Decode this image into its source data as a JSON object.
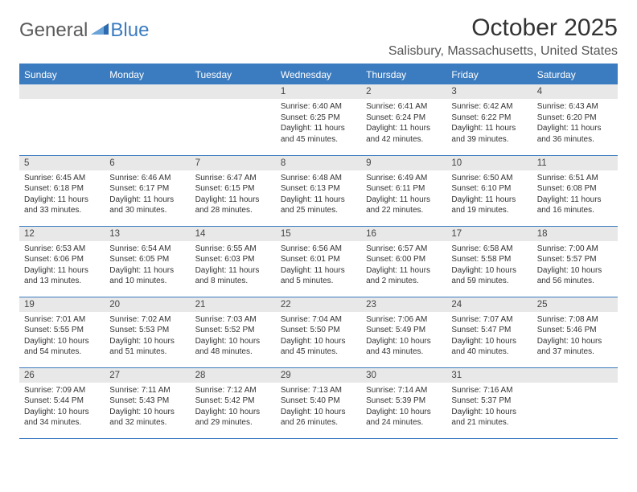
{
  "logo": {
    "general": "General",
    "blue": "Blue"
  },
  "title": "October 2025",
  "location": "Salisbury, Massachusetts, United States",
  "colors": {
    "header_bg": "#3b7bbf",
    "header_text": "#ffffff",
    "daynum_bg": "#e8e8e8",
    "border": "#3b7bbf",
    "text": "#333333"
  },
  "weekdays": [
    "Sunday",
    "Monday",
    "Tuesday",
    "Wednesday",
    "Thursday",
    "Friday",
    "Saturday"
  ],
  "weeks": [
    [
      {
        "day": "",
        "sunrise": "",
        "sunset": "",
        "daylight": ""
      },
      {
        "day": "",
        "sunrise": "",
        "sunset": "",
        "daylight": ""
      },
      {
        "day": "",
        "sunrise": "",
        "sunset": "",
        "daylight": ""
      },
      {
        "day": "1",
        "sunrise": "Sunrise: 6:40 AM",
        "sunset": "Sunset: 6:25 PM",
        "daylight": "Daylight: 11 hours and 45 minutes."
      },
      {
        "day": "2",
        "sunrise": "Sunrise: 6:41 AM",
        "sunset": "Sunset: 6:24 PM",
        "daylight": "Daylight: 11 hours and 42 minutes."
      },
      {
        "day": "3",
        "sunrise": "Sunrise: 6:42 AM",
        "sunset": "Sunset: 6:22 PM",
        "daylight": "Daylight: 11 hours and 39 minutes."
      },
      {
        "day": "4",
        "sunrise": "Sunrise: 6:43 AM",
        "sunset": "Sunset: 6:20 PM",
        "daylight": "Daylight: 11 hours and 36 minutes."
      }
    ],
    [
      {
        "day": "5",
        "sunrise": "Sunrise: 6:45 AM",
        "sunset": "Sunset: 6:18 PM",
        "daylight": "Daylight: 11 hours and 33 minutes."
      },
      {
        "day": "6",
        "sunrise": "Sunrise: 6:46 AM",
        "sunset": "Sunset: 6:17 PM",
        "daylight": "Daylight: 11 hours and 30 minutes."
      },
      {
        "day": "7",
        "sunrise": "Sunrise: 6:47 AM",
        "sunset": "Sunset: 6:15 PM",
        "daylight": "Daylight: 11 hours and 28 minutes."
      },
      {
        "day": "8",
        "sunrise": "Sunrise: 6:48 AM",
        "sunset": "Sunset: 6:13 PM",
        "daylight": "Daylight: 11 hours and 25 minutes."
      },
      {
        "day": "9",
        "sunrise": "Sunrise: 6:49 AM",
        "sunset": "Sunset: 6:11 PM",
        "daylight": "Daylight: 11 hours and 22 minutes."
      },
      {
        "day": "10",
        "sunrise": "Sunrise: 6:50 AM",
        "sunset": "Sunset: 6:10 PM",
        "daylight": "Daylight: 11 hours and 19 minutes."
      },
      {
        "day": "11",
        "sunrise": "Sunrise: 6:51 AM",
        "sunset": "Sunset: 6:08 PM",
        "daylight": "Daylight: 11 hours and 16 minutes."
      }
    ],
    [
      {
        "day": "12",
        "sunrise": "Sunrise: 6:53 AM",
        "sunset": "Sunset: 6:06 PM",
        "daylight": "Daylight: 11 hours and 13 minutes."
      },
      {
        "day": "13",
        "sunrise": "Sunrise: 6:54 AM",
        "sunset": "Sunset: 6:05 PM",
        "daylight": "Daylight: 11 hours and 10 minutes."
      },
      {
        "day": "14",
        "sunrise": "Sunrise: 6:55 AM",
        "sunset": "Sunset: 6:03 PM",
        "daylight": "Daylight: 11 hours and 8 minutes."
      },
      {
        "day": "15",
        "sunrise": "Sunrise: 6:56 AM",
        "sunset": "Sunset: 6:01 PM",
        "daylight": "Daylight: 11 hours and 5 minutes."
      },
      {
        "day": "16",
        "sunrise": "Sunrise: 6:57 AM",
        "sunset": "Sunset: 6:00 PM",
        "daylight": "Daylight: 11 hours and 2 minutes."
      },
      {
        "day": "17",
        "sunrise": "Sunrise: 6:58 AM",
        "sunset": "Sunset: 5:58 PM",
        "daylight": "Daylight: 10 hours and 59 minutes."
      },
      {
        "day": "18",
        "sunrise": "Sunrise: 7:00 AM",
        "sunset": "Sunset: 5:57 PM",
        "daylight": "Daylight: 10 hours and 56 minutes."
      }
    ],
    [
      {
        "day": "19",
        "sunrise": "Sunrise: 7:01 AM",
        "sunset": "Sunset: 5:55 PM",
        "daylight": "Daylight: 10 hours and 54 minutes."
      },
      {
        "day": "20",
        "sunrise": "Sunrise: 7:02 AM",
        "sunset": "Sunset: 5:53 PM",
        "daylight": "Daylight: 10 hours and 51 minutes."
      },
      {
        "day": "21",
        "sunrise": "Sunrise: 7:03 AM",
        "sunset": "Sunset: 5:52 PM",
        "daylight": "Daylight: 10 hours and 48 minutes."
      },
      {
        "day": "22",
        "sunrise": "Sunrise: 7:04 AM",
        "sunset": "Sunset: 5:50 PM",
        "daylight": "Daylight: 10 hours and 45 minutes."
      },
      {
        "day": "23",
        "sunrise": "Sunrise: 7:06 AM",
        "sunset": "Sunset: 5:49 PM",
        "daylight": "Daylight: 10 hours and 43 minutes."
      },
      {
        "day": "24",
        "sunrise": "Sunrise: 7:07 AM",
        "sunset": "Sunset: 5:47 PM",
        "daylight": "Daylight: 10 hours and 40 minutes."
      },
      {
        "day": "25",
        "sunrise": "Sunrise: 7:08 AM",
        "sunset": "Sunset: 5:46 PM",
        "daylight": "Daylight: 10 hours and 37 minutes."
      }
    ],
    [
      {
        "day": "26",
        "sunrise": "Sunrise: 7:09 AM",
        "sunset": "Sunset: 5:44 PM",
        "daylight": "Daylight: 10 hours and 34 minutes."
      },
      {
        "day": "27",
        "sunrise": "Sunrise: 7:11 AM",
        "sunset": "Sunset: 5:43 PM",
        "daylight": "Daylight: 10 hours and 32 minutes."
      },
      {
        "day": "28",
        "sunrise": "Sunrise: 7:12 AM",
        "sunset": "Sunset: 5:42 PM",
        "daylight": "Daylight: 10 hours and 29 minutes."
      },
      {
        "day": "29",
        "sunrise": "Sunrise: 7:13 AM",
        "sunset": "Sunset: 5:40 PM",
        "daylight": "Daylight: 10 hours and 26 minutes."
      },
      {
        "day": "30",
        "sunrise": "Sunrise: 7:14 AM",
        "sunset": "Sunset: 5:39 PM",
        "daylight": "Daylight: 10 hours and 24 minutes."
      },
      {
        "day": "31",
        "sunrise": "Sunrise: 7:16 AM",
        "sunset": "Sunset: 5:37 PM",
        "daylight": "Daylight: 10 hours and 21 minutes."
      },
      {
        "day": "",
        "sunrise": "",
        "sunset": "",
        "daylight": ""
      }
    ]
  ]
}
